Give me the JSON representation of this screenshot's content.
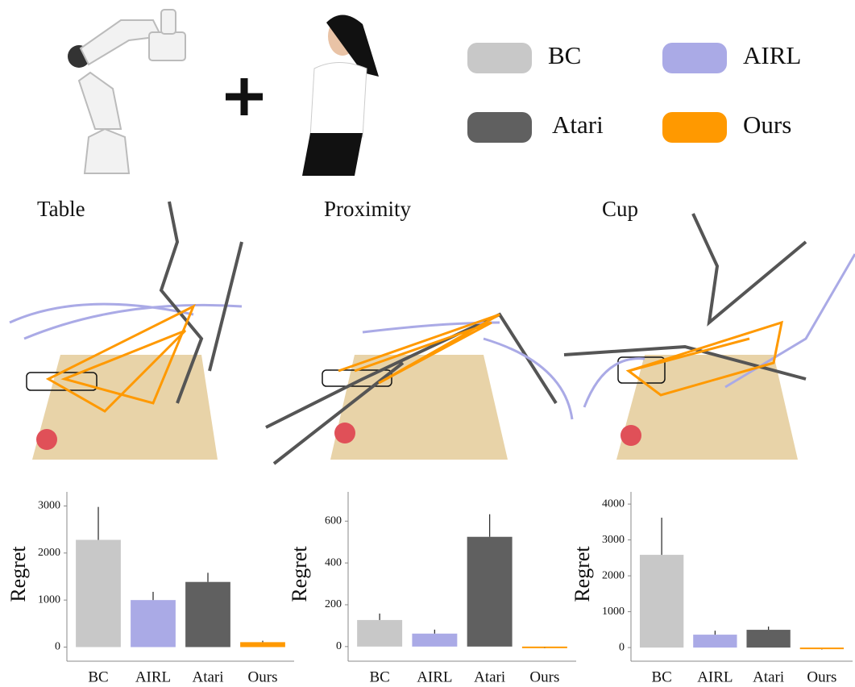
{
  "legend": [
    {
      "name": "BC",
      "color": "#c8c8c8"
    },
    {
      "name": "AIRL",
      "color": "#aaaae6"
    },
    {
      "name": "Atari",
      "color": "#606060"
    },
    {
      "name": "Ours",
      "color": "#ff9900"
    }
  ],
  "chart_data": [
    {
      "type": "bar",
      "title": "Table",
      "y_label": "Regret",
      "categories": [
        "BC",
        "AIRL",
        "Atari",
        "Ours"
      ],
      "colors": [
        "#c8c8c8",
        "#aaaae6",
        "#606060",
        "#ff9900"
      ],
      "values": [
        2280,
        1000,
        1385,
        105
      ],
      "errors": [
        700,
        175,
        195,
        30
      ],
      "ylim": [
        -300,
        3300
      ],
      "yticks": [
        0,
        1000,
        2000,
        3000
      ]
    },
    {
      "type": "bar",
      "title": "Proximity",
      "y_label": "Regret",
      "categories": [
        "BC",
        "AIRL",
        "Atari",
        "Ours"
      ],
      "colors": [
        "#c8c8c8",
        "#aaaae6",
        "#606060",
        "#ff9900"
      ],
      "values": [
        127,
        62,
        525,
        -4
      ],
      "errors": [
        31,
        19,
        108,
        2
      ],
      "ylim": [
        -70,
        740
      ],
      "yticks": [
        0,
        200,
        400,
        600
      ]
    },
    {
      "type": "bar",
      "title": "Cup",
      "y_label": "Regret",
      "categories": [
        "BC",
        "AIRL",
        "Atari",
        "Ours"
      ],
      "colors": [
        "#c8c8c8",
        "#aaaae6",
        "#606060",
        "#ff9900"
      ],
      "values": [
        2585,
        360,
        495,
        -45
      ],
      "errors": [
        1035,
        110,
        90,
        10
      ],
      "ylim": [
        -380,
        4340
      ],
      "yticks": [
        0,
        1000,
        2000,
        3000,
        4000
      ]
    }
  ]
}
